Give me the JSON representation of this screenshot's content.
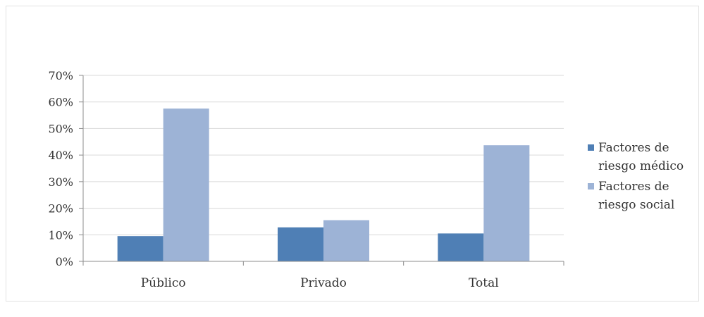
{
  "chart_data": {
    "type": "bar",
    "categories": [
      "Público",
      "Privado",
      "Total"
    ],
    "series": [
      {
        "name": "Factores de riesgo médico",
        "legend_lines": [
          "Factores de",
          "riesgo médico"
        ],
        "color": "#4f7fb5",
        "values": [
          0.095,
          0.128,
          0.105
        ]
      },
      {
        "name": "Factores de riesgo social",
        "legend_lines": [
          "Factores de",
          "riesgo social"
        ],
        "color": "#9db3d6",
        "values": [
          0.575,
          0.155,
          0.437
        ]
      }
    ],
    "yticks": [
      "0%",
      "10%",
      "20%",
      "30%",
      "40%",
      "50%",
      "60%",
      "70%"
    ],
    "ylim": [
      0,
      0.7
    ],
    "grid": true,
    "legend_position": "right",
    "title": "",
    "xlabel": "",
    "ylabel": ""
  }
}
